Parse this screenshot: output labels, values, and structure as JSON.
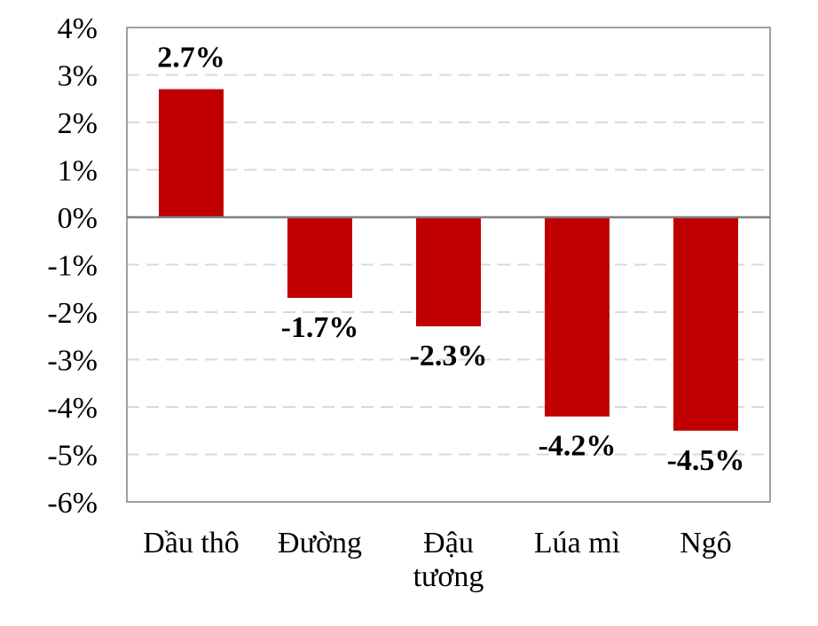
{
  "chart_data": {
    "type": "bar",
    "categories": [
      [
        "Dầu thô"
      ],
      [
        "Đường"
      ],
      [
        "Đậu",
        "tương"
      ],
      [
        "Lúa mì"
      ],
      [
        "Ngô"
      ]
    ],
    "values": [
      2.7,
      -1.7,
      -2.3,
      -4.2,
      -4.5
    ],
    "data_labels": [
      "2.7%",
      "-1.7%",
      "-2.3%",
      "-4.2%",
      "-4.5%"
    ],
    "yticks": [
      4,
      3,
      2,
      1,
      0,
      -1,
      -2,
      -3,
      -4,
      -5,
      -6
    ],
    "ytick_labels": [
      "4%",
      "3%",
      "2%",
      "1%",
      "0%",
      "-1%",
      "-2%",
      "-3%",
      "-4%",
      "-5%",
      "-6%"
    ],
    "ylim": [
      -6,
      4
    ],
    "grid": true,
    "title": "",
    "xlabel": "",
    "ylabel": "",
    "colors": {
      "bar": "#c00000",
      "grid": "#d9d9d9",
      "frame": "#8c7f6f",
      "zero_line": "#808080"
    }
  }
}
